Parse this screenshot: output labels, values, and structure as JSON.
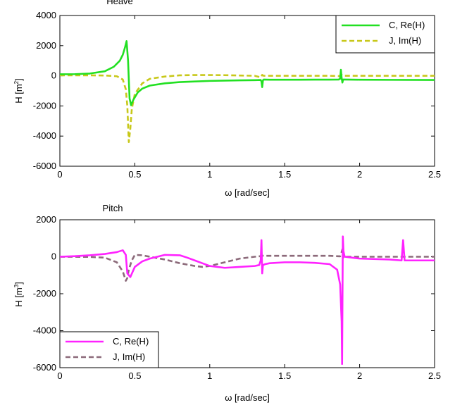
{
  "figure": {
    "background": "#ffffff"
  },
  "chart_data": [
    {
      "type": "line",
      "title": "Heave",
      "xlabel": "ω [rad/sec]",
      "ylabel_main": "H [m",
      "ylabel_sup": "2",
      "ylabel_close": "]",
      "xlim": [
        0,
        2.5
      ],
      "ylim": [
        -6000,
        4000
      ],
      "xticks": [
        0,
        0.5,
        1,
        1.5,
        2,
        2.5
      ],
      "xtick_labels": [
        "0",
        "0.5",
        "1",
        "1.5",
        "2",
        "2.5"
      ],
      "yticks": [
        4000,
        2000,
        0,
        -2000,
        -4000,
        -6000
      ],
      "ytick_labels": [
        "4000",
        "2000",
        "0",
        "-2000",
        "-4000",
        "-6000"
      ],
      "grid": false,
      "legend_position": "top-right",
      "series": [
        {
          "name": "C, Re(H)",
          "color": "#22e022",
          "dash": "solid",
          "x": [
            0,
            0.1,
            0.2,
            0.3,
            0.36,
            0.4,
            0.42,
            0.435,
            0.445,
            0.455,
            0.465,
            0.475,
            0.49,
            0.52,
            0.55,
            0.6,
            0.7,
            0.8,
            0.9,
            1.0,
            1.1,
            1.2,
            1.3,
            1.34,
            1.345,
            1.35,
            1.355,
            1.36,
            1.4,
            1.5,
            1.6,
            1.7,
            1.8,
            1.86,
            1.87,
            1.875,
            1.88,
            1.885,
            1.89,
            1.9,
            2.0,
            2.2,
            2.5
          ],
          "y": [
            100,
            110,
            150,
            300,
            600,
            1000,
            1400,
            1900,
            2300,
            1000,
            -1500,
            -1950,
            -1600,
            -1100,
            -850,
            -650,
            -500,
            -420,
            -380,
            -340,
            -320,
            -300,
            -290,
            -280,
            -380,
            -750,
            -300,
            -250,
            -260,
            -260,
            -260,
            -255,
            -255,
            -250,
            -200,
            400,
            -150,
            -450,
            -250,
            -250,
            -260,
            -270,
            -280
          ]
        },
        {
          "name": "J, Im(H)",
          "color": "#c8c81a",
          "dash": "dashed",
          "x": [
            0,
            0.2,
            0.3,
            0.38,
            0.42,
            0.44,
            0.45,
            0.46,
            0.47,
            0.48,
            0.5,
            0.55,
            0.6,
            0.7,
            0.8,
            0.9,
            1.0,
            1.1,
            1.2,
            1.3,
            1.34,
            1.35,
            1.36,
            1.5,
            1.8,
            1.87,
            1.88,
            1.89,
            2.0,
            2.5
          ],
          "y": [
            30,
            30,
            20,
            -30,
            -250,
            -900,
            -2000,
            -4400,
            -3500,
            -2200,
            -1200,
            -500,
            -200,
            -50,
            30,
            50,
            50,
            40,
            20,
            0,
            -100,
            60,
            0,
            0,
            0,
            -20,
            60,
            0,
            0,
            0
          ]
        }
      ]
    },
    {
      "type": "line",
      "title": "Pitch",
      "xlabel": "ω [rad/sec]",
      "ylabel_main": "H [m",
      "ylabel_sup": "3",
      "ylabel_close": "]",
      "xlim": [
        0,
        2.5
      ],
      "ylim": [
        -6000,
        2000
      ],
      "xticks": [
        0,
        0.5,
        1,
        1.5,
        2,
        2.5
      ],
      "xtick_labels": [
        "0",
        "0.5",
        "1",
        "1.5",
        "2",
        "2.5"
      ],
      "yticks": [
        2000,
        0,
        -2000,
        -4000,
        -6000
      ],
      "ytick_labels": [
        "2000",
        "0",
        "-2000",
        "-4000",
        "-6000"
      ],
      "grid": false,
      "legend_position": "bottom-left",
      "series": [
        {
          "name": "C, Re(H)",
          "color": "#ff22ff",
          "dash": "solid",
          "x": [
            0,
            0.1,
            0.2,
            0.3,
            0.38,
            0.42,
            0.44,
            0.45,
            0.47,
            0.5,
            0.55,
            0.6,
            0.7,
            0.8,
            0.85,
            0.9,
            0.95,
            1.0,
            1.05,
            1.1,
            1.2,
            1.3,
            1.33,
            1.34,
            1.345,
            1.35,
            1.355,
            1.37,
            1.4,
            1.5,
            1.6,
            1.7,
            1.8,
            1.85,
            1.87,
            1.88,
            1.883,
            1.885,
            1.888,
            1.892,
            1.9,
            1.95,
            2.0,
            2.2,
            2.28,
            2.29,
            2.3,
            2.32,
            2.4,
            2.5
          ],
          "y": [
            0,
            30,
            80,
            150,
            250,
            350,
            100,
            -900,
            -1100,
            -550,
            -250,
            -100,
            100,
            80,
            -50,
            -200,
            -350,
            -500,
            -550,
            -600,
            -550,
            -500,
            -450,
            -200,
            900,
            -900,
            -450,
            -400,
            -350,
            -300,
            -300,
            -330,
            -400,
            -700,
            -1500,
            -3500,
            -5800,
            -3000,
            1100,
            300,
            0,
            -50,
            -100,
            -150,
            -200,
            900,
            -200,
            -200,
            -200,
            -200
          ]
        },
        {
          "name": "J, Im(H)",
          "color": "#8c6a7a",
          "dash": "dashed",
          "x": [
            0,
            0.2,
            0.3,
            0.38,
            0.42,
            0.44,
            0.45,
            0.46,
            0.48,
            0.5,
            0.55,
            0.6,
            0.7,
            0.8,
            0.9,
            0.95,
            1.0,
            1.1,
            1.2,
            1.3,
            1.34,
            1.35,
            1.36,
            1.4,
            1.5,
            1.8,
            1.87,
            1.88,
            1.885,
            1.89,
            1.9,
            2.0,
            2.5
          ],
          "y": [
            0,
            -10,
            -50,
            -300,
            -800,
            -1300,
            -1150,
            -700,
            -200,
            100,
            80,
            0,
            -150,
            -350,
            -500,
            -550,
            -500,
            -300,
            -100,
            0,
            30,
            60,
            50,
            50,
            50,
            50,
            20,
            250,
            400,
            -50,
            0,
            0,
            0
          ]
        }
      ]
    }
  ]
}
